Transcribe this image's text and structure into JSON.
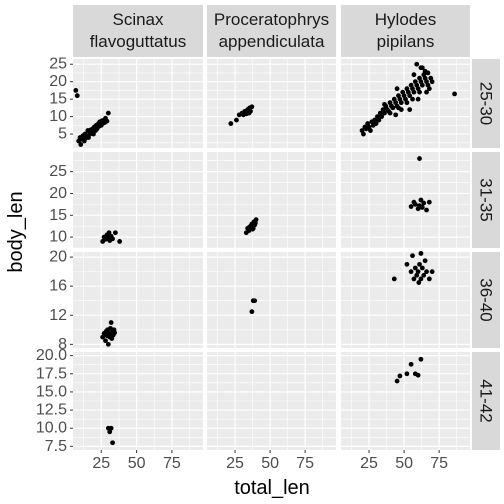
{
  "chart_data": {
    "type": "scatter",
    "facet_type": "grid",
    "xlabel": "total_len",
    "ylabel": "body_len",
    "col_labels": [
      [
        "Scinax",
        "flavoguttatus"
      ],
      [
        "Proceratophrys",
        "appendiculata"
      ],
      [
        "Hylodes",
        "pipilans"
      ]
    ],
    "row_labels": [
      "25-30",
      "31-35",
      "36-40",
      "41-42"
    ],
    "xlim": [
      5,
      97
    ],
    "x_ticks": [
      25,
      50,
      75
    ],
    "x_tick_labels": [
      "25",
      "50",
      "75"
    ],
    "rows": [
      {
        "ylim": [
          1.0,
          26.5
        ],
        "y_ticks": [
          5,
          10,
          15,
          20,
          25
        ],
        "y_tick_labels": [
          "5",
          "10",
          "15",
          "20",
          "25"
        ],
        "panels": [
          {
            "points": [
              [
                7,
                17.5
              ],
              [
                8,
                16
              ],
              [
                9,
                3
              ],
              [
                10,
                4
              ],
              [
                10.5,
                2
              ],
              [
                11,
                3.5
              ],
              [
                12,
                4.5
              ],
              [
                13,
                3
              ],
              [
                13.5,
                5
              ],
              [
                14,
                3.8
              ],
              [
                15,
                4.5
              ],
              [
                15.5,
                6
              ],
              [
                16,
                4
              ],
              [
                17,
                5
              ],
              [
                17.5,
                6.2
              ],
              [
                18,
                5.5
              ],
              [
                19,
                6.5
              ],
              [
                19.5,
                5
              ],
              [
                20,
                7
              ],
              [
                21,
                6
              ],
              [
                21.5,
                7.5
              ],
              [
                22,
                6.5
              ],
              [
                23,
                8
              ],
              [
                23.5,
                7.2
              ],
              [
                24,
                8.5
              ],
              [
                25,
                7.5
              ],
              [
                25.5,
                8.8
              ],
              [
                26,
                8
              ],
              [
                27,
                9
              ],
              [
                27.5,
                8.3
              ],
              [
                28,
                9.5
              ],
              [
                29,
                8.7
              ],
              [
                30,
                11
              ]
            ]
          },
          {
            "points": [
              [
                22,
                8
              ],
              [
                26,
                9
              ],
              [
                28,
                10.5
              ],
              [
                30,
                11
              ],
              [
                31,
                10.5
              ],
              [
                32,
                11.5
              ],
              [
                33,
                10.8
              ],
              [
                34,
                12
              ],
              [
                35,
                11
              ],
              [
                35.5,
                12.5
              ],
              [
                36,
                11.5
              ],
              [
                37,
                12.8
              ]
            ]
          },
          {
            "points": [
              [
                20,
                6
              ],
              [
                21,
                5
              ],
              [
                22,
                7
              ],
              [
                23,
                6.5
              ],
              [
                24,
                8
              ],
              [
                25,
                7
              ],
              [
                26,
                6
              ],
              [
                27,
                8.5
              ],
              [
                28,
                7.5
              ],
              [
                29,
                9
              ],
              [
                30,
                8
              ],
              [
                31,
                10
              ],
              [
                32,
                9
              ],
              [
                33,
                11
              ],
              [
                34,
                10
              ],
              [
                35,
                12
              ],
              [
                36,
                11
              ],
              [
                37,
                13
              ],
              [
                38,
                12
              ],
              [
                39,
                11.5
              ],
              [
                40,
                14
              ],
              [
                41,
                13
              ],
              [
                42,
                12.5
              ],
              [
                43,
                15
              ],
              [
                44,
                14
              ],
              [
                45,
                13
              ],
              [
                46,
                16
              ],
              [
                47,
                15
              ],
              [
                48,
                14
              ],
              [
                49,
                17
              ],
              [
                50,
                16
              ],
              [
                51,
                15
              ],
              [
                52,
                18
              ],
              [
                53,
                17
              ],
              [
                54,
                16
              ],
              [
                55,
                19
              ],
              [
                56,
                18
              ],
              [
                57,
                17
              ],
              [
                58,
                20
              ],
              [
                59,
                19
              ],
              [
                60,
                18
              ],
              [
                61,
                21
              ],
              [
                62,
                20
              ],
              [
                63,
                19
              ],
              [
                64,
                22
              ],
              [
                65,
                21
              ],
              [
                66,
                20
              ],
              [
                67,
                19
              ],
              [
                68,
                18
              ],
              [
                69,
                21
              ],
              [
                70,
                20
              ],
              [
                48,
                12
              ],
              [
                52,
                14
              ],
              [
                45,
                18
              ],
              [
                57,
                22
              ],
              [
                60,
                15
              ],
              [
                63,
                24
              ],
              [
                54,
                12
              ],
              [
                40,
                11
              ],
              [
                46,
                12.5
              ],
              [
                56,
                15
              ],
              [
                61,
                17
              ],
              [
                66,
                17
              ],
              [
                44,
                10.5
              ],
              [
                36,
                13.5
              ],
              [
                62,
                24
              ],
              [
                59,
                25
              ],
              [
                67,
                22.5
              ],
              [
                65,
                23
              ],
              [
                86,
                16.5
              ]
            ]
          }
        ]
      },
      {
        "ylim": [
          7.5,
          29.5
        ],
        "y_ticks": [
          10,
          15,
          20,
          25
        ],
        "y_tick_labels": [
          "10",
          "15",
          "20",
          "25"
        ],
        "panels": [
          {
            "points": [
              [
                26,
                9
              ],
              [
                27,
                10
              ],
              [
                28,
                9.5
              ],
              [
                29,
                10.5
              ],
              [
                30,
                9.8
              ],
              [
                30.5,
                11
              ],
              [
                31,
                9.2
              ],
              [
                32,
                10.2
              ],
              [
                33,
                9.6
              ],
              [
                35,
                11
              ],
              [
                38,
                9
              ]
            ]
          },
          {
            "points": [
              [
                33,
                11
              ],
              [
                34,
                12
              ],
              [
                35,
                11.5
              ],
              [
                36,
                12.5
              ],
              [
                37,
                13
              ],
              [
                38,
                12
              ],
              [
                38.5,
                13.5
              ],
              [
                39,
                12.8
              ],
              [
                40,
                14
              ],
              [
                35,
                12.2
              ],
              [
                37.5,
                11.8
              ],
              [
                39.5,
                13.2
              ]
            ]
          },
          {
            "points": [
              [
                55,
                17
              ],
              [
                57,
                18
              ],
              [
                58,
                17.5
              ],
              [
                60,
                16.5
              ],
              [
                61,
                17.2
              ],
              [
                62,
                18.5
              ],
              [
                63,
                16.8
              ],
              [
                64,
                17.8
              ],
              [
                66,
                16.2
              ],
              [
                68,
                18
              ],
              [
                61,
                28
              ]
            ]
          }
        ]
      },
      {
        "ylim": [
          7.5,
          20.7
        ],
        "y_ticks": [
          8,
          12,
          16,
          20
        ],
        "y_tick_labels": [
          "8",
          "12",
          "16",
          "20"
        ],
        "panels": [
          {
            "points": [
              [
                26,
                9
              ],
              [
                27,
                9.5
              ],
              [
                28,
                8.5
              ],
              [
                28.5,
                9.8
              ],
              [
                29,
                9.2
              ],
              [
                29.5,
                10
              ],
              [
                30,
                8
              ],
              [
                30.5,
                9.5
              ],
              [
                31,
                9
              ],
              [
                31.5,
                10.2
              ],
              [
                32,
                9.5
              ],
              [
                32.5,
                8.8
              ],
              [
                33,
                9.8
              ],
              [
                33.5,
                9.3
              ],
              [
                34,
                10
              ],
              [
                34.5,
                9.6
              ],
              [
                32,
                11
              ]
            ]
          },
          {
            "points": [
              [
                37,
                12.5
              ],
              [
                38,
                14
              ],
              [
                39,
                14
              ]
            ]
          },
          {
            "points": [
              [
                43,
                17
              ],
              [
                52,
                19
              ],
              [
                55,
                18
              ],
              [
                57,
                17
              ],
              [
                58,
                18.5
              ],
              [
                59,
                17.5
              ],
              [
                60,
                18
              ],
              [
                60.5,
                16.5
              ],
              [
                61,
                19
              ],
              [
                62,
                17
              ],
              [
                63,
                18.5
              ],
              [
                64,
                17.5
              ],
              [
                65,
                19.5
              ],
              [
                66,
                18
              ],
              [
                68,
                17
              ],
              [
                56,
                20.2
              ],
              [
                62,
                20.5
              ],
              [
                70,
                18
              ]
            ]
          }
        ]
      },
      {
        "ylim": [
          7.0,
          20.5
        ],
        "y_ticks": [
          7.5,
          10,
          12.5,
          15,
          17.5,
          20
        ],
        "y_tick_labels": [
          "7.5",
          "10.0",
          "12.5",
          "15.0",
          "17.5",
          "20.0"
        ],
        "panels": [
          {
            "points": [
              [
                30,
                10
              ],
              [
                31,
                9.5
              ],
              [
                32,
                10
              ],
              [
                33,
                8
              ]
            ]
          },
          {
            "points": []
          },
          {
            "points": [
              [
                45,
                16.5
              ],
              [
                47,
                17.2
              ],
              [
                52,
                17.5
              ],
              [
                55,
                18.8
              ],
              [
                58,
                17.5
              ],
              [
                60,
                17.3
              ],
              [
                62,
                19.5
              ]
            ]
          }
        ]
      }
    ]
  }
}
